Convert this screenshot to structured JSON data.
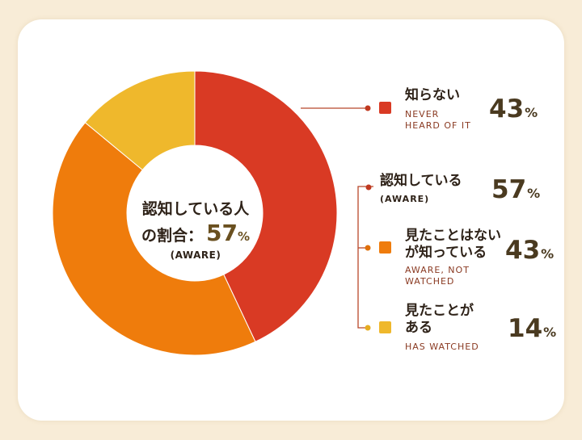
{
  "colors": {
    "never": "#d93a24",
    "aware_not_watched": "#ef7c0c",
    "watched": "#efb82c",
    "background": "#f8ecd7"
  },
  "chart_data": {
    "type": "pie",
    "donut": true,
    "slices": [
      {
        "label": "知らない",
        "sublabel": "NEVER HEARD OF IT",
        "value": 43,
        "color": "#d93a24"
      },
      {
        "label": "見たことはないが知っている",
        "sublabel": "AWARE, NOT WATCHED",
        "value": 43,
        "color": "#ef7c0c"
      },
      {
        "label": "見たことがある",
        "sublabel": "HAS WATCHED",
        "value": 14,
        "color": "#efb82c"
      }
    ],
    "center": {
      "title_line1": "認知している人",
      "title_line2": "の割合：",
      "value": "57",
      "unit": "%",
      "sublabel": "(AWARE)"
    }
  },
  "legend": {
    "never": {
      "title": "知らない",
      "sub_line1": "NEVER",
      "sub_line2": "HEARD OF IT",
      "value": "43",
      "unit": "%"
    },
    "aware": {
      "title": "認知している",
      "sub": "(AWARE)",
      "value": "57",
      "unit": "%"
    },
    "aware_not_watched": {
      "title_line1": "見たことはない",
      "title_line2": "が知っている",
      "sub_line1": "AWARE, NOT",
      "sub_line2": "WATCHED",
      "value": "43",
      "unit": "%"
    },
    "watched": {
      "title_line1": "見たことが",
      "title_line2": "ある",
      "sub": "HAS WATCHED",
      "value": "14",
      "unit": "%"
    }
  }
}
